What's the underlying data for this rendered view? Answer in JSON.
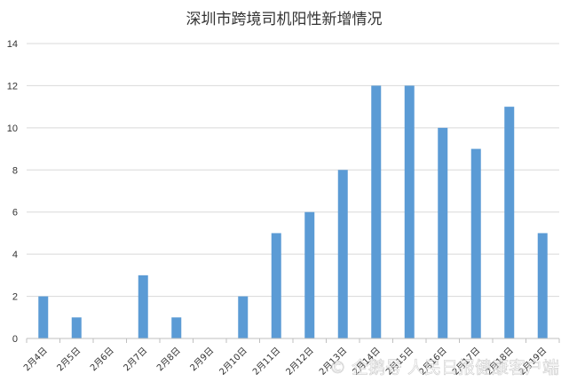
{
  "chart_data": {
    "type": "bar",
    "title": "深圳市跨境司机阳性新增情况",
    "categories": [
      "2月4日",
      "2月5日",
      "2月6日",
      "2月7日",
      "2月8日",
      "2月9日",
      "2月10日",
      "2月11日",
      "2月12日",
      "2月13日",
      "2月14日",
      "2月15日",
      "2月16日",
      "2月17日",
      "2月18日",
      "2月19日"
    ],
    "values": [
      2,
      1,
      0,
      3,
      1,
      0,
      2,
      5,
      6,
      8,
      12,
      12,
      10,
      9,
      11,
      5
    ],
    "xlabel": "",
    "ylabel": "",
    "ylim": [
      0,
      14
    ],
    "yticks": [
      0,
      2,
      4,
      6,
      8,
      10,
      12,
      14
    ],
    "grid": true,
    "legend": "none",
    "bar_color": "#5b9bd5"
  },
  "watermark": {
    "text": "© 企鹅号 人民日报健康客户端"
  }
}
